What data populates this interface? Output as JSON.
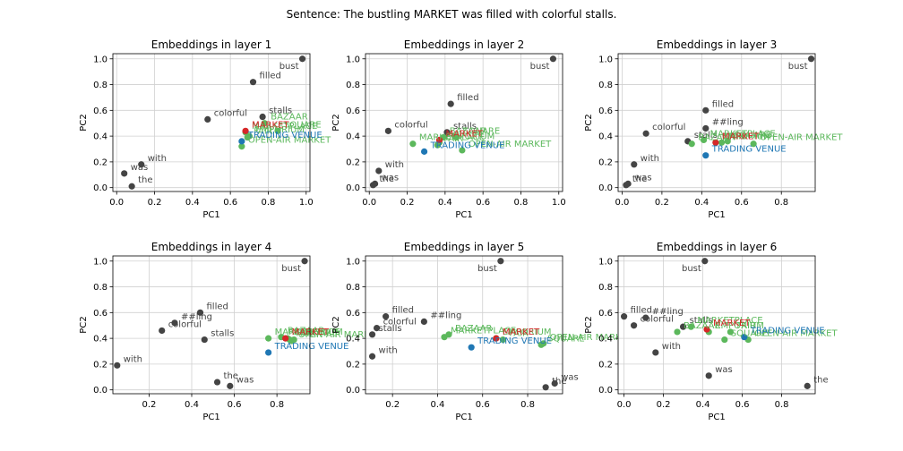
{
  "figure": {
    "suptitle": "Sentence: The bustling MARKET was filled with colorful stalls.",
    "colors": {
      "token": "#444444",
      "target": "#d62728",
      "synonym": "#5cb85c",
      "reference": "#1f77b4",
      "grid": "#d0d0d0"
    }
  },
  "chart_data": [
    {
      "type": "scatter",
      "title": "Embeddings in layer 1",
      "xlabel": "PC1",
      "ylabel": "PC2",
      "xlim": [
        -0.02,
        1.02
      ],
      "ylim": [
        -0.03,
        1.04
      ],
      "xticks": [
        0.0,
        0.2,
        0.4,
        0.6,
        0.8,
        1.0
      ],
      "yticks": [
        0.0,
        0.2,
        0.4,
        0.6,
        0.8,
        1.0
      ],
      "grid": true,
      "points": [
        {
          "label": "bust",
          "x": 0.98,
          "y": 1.0,
          "group": "token"
        },
        {
          "label": "filled",
          "x": 0.72,
          "y": 0.82,
          "group": "token"
        },
        {
          "label": "stalls",
          "x": 0.77,
          "y": 0.55,
          "group": "token"
        },
        {
          "label": "colorful",
          "x": 0.48,
          "y": 0.53,
          "group": "token"
        },
        {
          "label": "with",
          "x": 0.13,
          "y": 0.18,
          "group": "token"
        },
        {
          "label": "was",
          "x": 0.04,
          "y": 0.11,
          "group": "token"
        },
        {
          "label": "the",
          "x": 0.08,
          "y": 0.01,
          "group": "token"
        },
        {
          "label": "BAZAAR",
          "x": 0.78,
          "y": 0.5,
          "group": "synonym"
        },
        {
          "label": "MARKETPLACE",
          "x": 0.68,
          "y": 0.43,
          "group": "synonym"
        },
        {
          "label": "SQUARE",
          "x": 0.85,
          "y": 0.44,
          "group": "synonym"
        },
        {
          "label": "FAIR",
          "x": 0.69,
          "y": 0.39,
          "group": "synonym"
        },
        {
          "label": "EMPORIUM",
          "x": 0.7,
          "y": 0.4,
          "group": "synonym"
        },
        {
          "label": "OPEN-AIR MARKET",
          "x": 0.66,
          "y": 0.32,
          "group": "synonym"
        },
        {
          "label": "MARKET",
          "x": 0.68,
          "y": 0.44,
          "group": "target"
        },
        {
          "label": "TRADING VENUE",
          "x": 0.66,
          "y": 0.36,
          "group": "reference"
        }
      ]
    },
    {
      "type": "scatter",
      "title": "Embeddings in layer 2",
      "xlabel": "PC1",
      "ylabel": "PC2",
      "xlim": [
        -0.02,
        1.02
      ],
      "ylim": [
        -0.03,
        1.04
      ],
      "xticks": [
        0.0,
        0.2,
        0.4,
        0.6,
        0.8,
        1.0
      ],
      "yticks": [
        0.0,
        0.2,
        0.4,
        0.6,
        0.8,
        1.0
      ],
      "grid": true,
      "points": [
        {
          "label": "bust",
          "x": 0.97,
          "y": 1.0,
          "group": "token"
        },
        {
          "label": "filled",
          "x": 0.43,
          "y": 0.65,
          "group": "token"
        },
        {
          "label": "colorful",
          "x": 0.1,
          "y": 0.44,
          "group": "token"
        },
        {
          "label": "stalls",
          "x": 0.41,
          "y": 0.43,
          "group": "token"
        },
        {
          "label": "with",
          "x": 0.05,
          "y": 0.13,
          "group": "token"
        },
        {
          "label": "was",
          "x": 0.03,
          "y": 0.03,
          "group": "token"
        },
        {
          "label": "the",
          "x": 0.02,
          "y": 0.02,
          "group": "token"
        },
        {
          "label": "SQUARE",
          "x": 0.46,
          "y": 0.39,
          "group": "synonym"
        },
        {
          "label": "BAZAAR",
          "x": 0.39,
          "y": 0.39,
          "group": "synonym"
        },
        {
          "label": "MARKETPLACE",
          "x": 0.23,
          "y": 0.34,
          "group": "synonym"
        },
        {
          "label": "EMPORIUM",
          "x": 0.37,
          "y": 0.35,
          "group": "synonym"
        },
        {
          "label": "FAIR",
          "x": 0.36,
          "y": 0.33,
          "group": "synonym"
        },
        {
          "label": "OPEN-AIR MARKET",
          "x": 0.49,
          "y": 0.29,
          "group": "synonym"
        },
        {
          "label": "MARKET",
          "x": 0.37,
          "y": 0.37,
          "group": "target"
        },
        {
          "label": "TRADING VENUE",
          "x": 0.29,
          "y": 0.28,
          "group": "reference"
        }
      ]
    },
    {
      "type": "scatter",
      "title": "Embeddings in layer 3",
      "xlabel": "PC1",
      "ylabel": "PC2",
      "xlim": [
        -0.02,
        0.97
      ],
      "ylim": [
        -0.03,
        1.04
      ],
      "xticks": [
        0.0,
        0.2,
        0.4,
        0.6,
        0.8
      ],
      "yticks": [
        0.0,
        0.2,
        0.4,
        0.6,
        0.8,
        1.0
      ],
      "grid": true,
      "points": [
        {
          "label": "bust",
          "x": 0.95,
          "y": 1.0,
          "group": "token"
        },
        {
          "label": "filled",
          "x": 0.42,
          "y": 0.6,
          "group": "token"
        },
        {
          "label": "##ling",
          "x": 0.42,
          "y": 0.46,
          "group": "token"
        },
        {
          "label": "colorful",
          "x": 0.12,
          "y": 0.42,
          "group": "token"
        },
        {
          "label": "stalls",
          "x": 0.33,
          "y": 0.36,
          "group": "token"
        },
        {
          "label": "with",
          "x": 0.06,
          "y": 0.18,
          "group": "token"
        },
        {
          "label": "was",
          "x": 0.03,
          "y": 0.03,
          "group": "token"
        },
        {
          "label": "the",
          "x": 0.02,
          "y": 0.02,
          "group": "token"
        },
        {
          "label": "BAZAAR",
          "x": 0.35,
          "y": 0.34,
          "group": "synonym"
        },
        {
          "label": "MARKETPLACE",
          "x": 0.41,
          "y": 0.37,
          "group": "synonym"
        },
        {
          "label": "SQUARE",
          "x": 0.53,
          "y": 0.36,
          "group": "synonym"
        },
        {
          "label": "FAIR",
          "x": 0.5,
          "y": 0.35,
          "group": "synonym"
        },
        {
          "label": "EMPORIUM",
          "x": 0.47,
          "y": 0.35,
          "group": "synonym"
        },
        {
          "label": "OPEN-AIR MARKET",
          "x": 0.66,
          "y": 0.34,
          "group": "synonym"
        },
        {
          "label": "MARKET",
          "x": 0.47,
          "y": 0.35,
          "group": "target"
        },
        {
          "label": "TRADING VENUE",
          "x": 0.42,
          "y": 0.25,
          "group": "reference"
        }
      ]
    },
    {
      "type": "scatter",
      "title": "Embeddings in layer 4",
      "xlabel": "PC1",
      "ylabel": "PC2",
      "xlim": [
        0.03,
        0.955
      ],
      "ylim": [
        -0.03,
        1.04
      ],
      "xticks": [
        0.2,
        0.4,
        0.6,
        0.8
      ],
      "yticks": [
        0.0,
        0.2,
        0.4,
        0.6,
        0.8,
        1.0
      ],
      "grid": true,
      "points": [
        {
          "label": "bust",
          "x": 0.93,
          "y": 1.0,
          "group": "token"
        },
        {
          "label": "filled",
          "x": 0.44,
          "y": 0.6,
          "group": "token"
        },
        {
          "label": "##ling",
          "x": 0.32,
          "y": 0.52,
          "group": "token"
        },
        {
          "label": "colorful",
          "x": 0.26,
          "y": 0.46,
          "group": "token"
        },
        {
          "label": "stalls",
          "x": 0.46,
          "y": 0.39,
          "group": "token"
        },
        {
          "label": "with",
          "x": 0.05,
          "y": 0.19,
          "group": "token"
        },
        {
          "label": "the",
          "x": 0.52,
          "y": 0.06,
          "group": "token"
        },
        {
          "label": "was",
          "x": 0.58,
          "y": 0.03,
          "group": "token"
        },
        {
          "label": "MARKETPLACE",
          "x": 0.76,
          "y": 0.4,
          "group": "synonym"
        },
        {
          "label": "BAZAAR",
          "x": 0.82,
          "y": 0.41,
          "group": "synonym"
        },
        {
          "label": "EMPORIUM",
          "x": 0.85,
          "y": 0.4,
          "group": "synonym"
        },
        {
          "label": "FAIR",
          "x": 0.86,
          "y": 0.39,
          "group": "synonym"
        },
        {
          "label": "SQUARE",
          "x": 0.88,
          "y": 0.39,
          "group": "synonym"
        },
        {
          "label": "OPEN-AIR MARKET",
          "x": 0.87,
          "y": 0.38,
          "group": "synonym"
        },
        {
          "label": "MARKET",
          "x": 0.84,
          "y": 0.4,
          "group": "target"
        },
        {
          "label": "TRADING VENUE",
          "x": 0.76,
          "y": 0.29,
          "group": "reference"
        }
      ]
    },
    {
      "type": "scatter",
      "title": "Embeddings in layer 5",
      "xlabel": "PC1",
      "ylabel": "PC2",
      "xlim": [
        0.08,
        0.955
      ],
      "ylim": [
        -0.03,
        1.04
      ],
      "xticks": [
        0.2,
        0.4,
        0.6,
        0.8
      ],
      "yticks": [
        0.0,
        0.2,
        0.4,
        0.6,
        0.8,
        1.0
      ],
      "grid": true,
      "points": [
        {
          "label": "bust",
          "x": 0.68,
          "y": 1.0,
          "group": "token"
        },
        {
          "label": "filled",
          "x": 0.17,
          "y": 0.57,
          "group": "token"
        },
        {
          "label": "##ling",
          "x": 0.34,
          "y": 0.53,
          "group": "token"
        },
        {
          "label": "colorful",
          "x": 0.13,
          "y": 0.48,
          "group": "token"
        },
        {
          "label": "stalls",
          "x": 0.11,
          "y": 0.43,
          "group": "token"
        },
        {
          "label": "with",
          "x": 0.11,
          "y": 0.26,
          "group": "token"
        },
        {
          "label": "was",
          "x": 0.92,
          "y": 0.05,
          "group": "token"
        },
        {
          "label": "the",
          "x": 0.88,
          "y": 0.02,
          "group": "token"
        },
        {
          "label": "BAZAAR",
          "x": 0.45,
          "y": 0.43,
          "group": "synonym"
        },
        {
          "label": "MARKETPLACE",
          "x": 0.43,
          "y": 0.41,
          "group": "synonym"
        },
        {
          "label": "EMPORIUM",
          "x": 0.66,
          "y": 0.4,
          "group": "synonym"
        },
        {
          "label": "FAIR",
          "x": 0.69,
          "y": 0.39,
          "group": "synonym"
        },
        {
          "label": "OPEN-AIR MARKET",
          "x": 0.87,
          "y": 0.36,
          "group": "synonym"
        },
        {
          "label": "SQUARE",
          "x": 0.86,
          "y": 0.35,
          "group": "synonym"
        },
        {
          "label": "MARKET",
          "x": 0.66,
          "y": 0.4,
          "group": "target"
        },
        {
          "label": "TRADING VENUE",
          "x": 0.55,
          "y": 0.33,
          "group": "reference"
        }
      ]
    },
    {
      "type": "scatter",
      "title": "Embeddings in layer 6",
      "xlabel": "PC1",
      "ylabel": "PC2",
      "xlim": [
        -0.03,
        0.97
      ],
      "ylim": [
        -0.03,
        1.04
      ],
      "xticks": [
        0.0,
        0.2,
        0.4,
        0.6,
        0.8
      ],
      "yticks": [
        0.0,
        0.2,
        0.4,
        0.6,
        0.8,
        1.0
      ],
      "grid": true,
      "points": [
        {
          "label": "bust",
          "x": 0.41,
          "y": 1.0,
          "group": "token"
        },
        {
          "label": "filled",
          "x": 0.0,
          "y": 0.57,
          "group": "token"
        },
        {
          "label": "##ling",
          "x": 0.11,
          "y": 0.56,
          "group": "token"
        },
        {
          "label": "colorful",
          "x": 0.05,
          "y": 0.5,
          "group": "token"
        },
        {
          "label": "stalls",
          "x": 0.3,
          "y": 0.49,
          "group": "token"
        },
        {
          "label": "with",
          "x": 0.16,
          "y": 0.29,
          "group": "token"
        },
        {
          "label": "was",
          "x": 0.43,
          "y": 0.11,
          "group": "token"
        },
        {
          "label": "the",
          "x": 0.93,
          "y": 0.03,
          "group": "token"
        },
        {
          "label": "BAZAAR",
          "x": 0.27,
          "y": 0.45,
          "group": "synonym"
        },
        {
          "label": "MARKETPLACE",
          "x": 0.34,
          "y": 0.49,
          "group": "synonym"
        },
        {
          "label": "EMPORIUM",
          "x": 0.43,
          "y": 0.45,
          "group": "synonym"
        },
        {
          "label": "FAIR",
          "x": 0.54,
          "y": 0.45,
          "group": "synonym"
        },
        {
          "label": "SQUARE",
          "x": 0.51,
          "y": 0.39,
          "group": "synonym"
        },
        {
          "label": "OPEN-AIR MARKET",
          "x": 0.63,
          "y": 0.39,
          "group": "synonym"
        },
        {
          "label": "MARKET",
          "x": 0.42,
          "y": 0.47,
          "group": "target"
        },
        {
          "label": "TRADING VENUE",
          "x": 0.61,
          "y": 0.41,
          "group": "reference"
        }
      ]
    }
  ]
}
